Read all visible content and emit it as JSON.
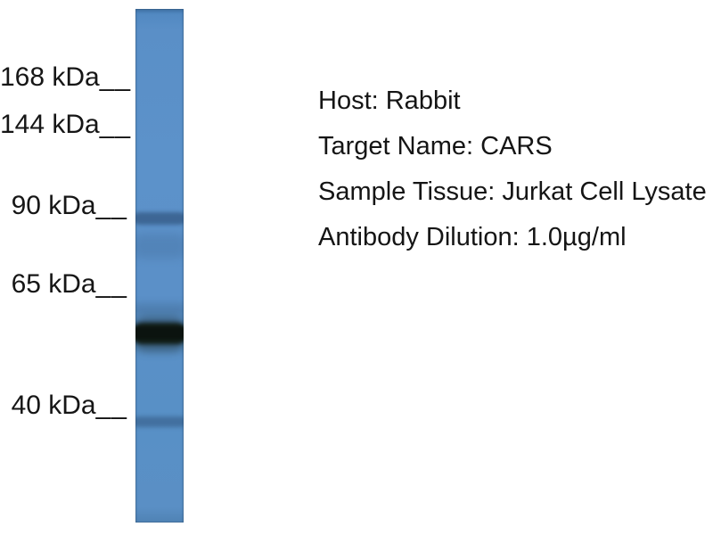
{
  "figure": {
    "type": "western-blot",
    "background_color": "#ffffff",
    "lane_color": "#5a8fc7",
    "band_color": "#111c16"
  },
  "markers": [
    {
      "label": "168 kDa",
      "tick": "__"
    },
    {
      "label": "144 kDa",
      "tick": "__"
    },
    {
      "label": "90 kDa",
      "tick": "__"
    },
    {
      "label": "65 kDa",
      "tick": "__"
    },
    {
      "label": "40 kDa",
      "tick": "__"
    }
  ],
  "bands": [
    {
      "approx_kda": "90",
      "intensity": "faint"
    },
    {
      "approx_kda": "58",
      "intensity": "strong"
    },
    {
      "approx_kda": "40",
      "intensity": "faint"
    }
  ],
  "annotations": {
    "lines": [
      {
        "text": "Host: Rabbit"
      },
      {
        "text": "Target Name: CARS"
      },
      {
        "text": "Sample Tissue: Jurkat Cell Lysate"
      },
      {
        "text": "Antibody Dilution: 1.0µg/ml"
      }
    ]
  }
}
